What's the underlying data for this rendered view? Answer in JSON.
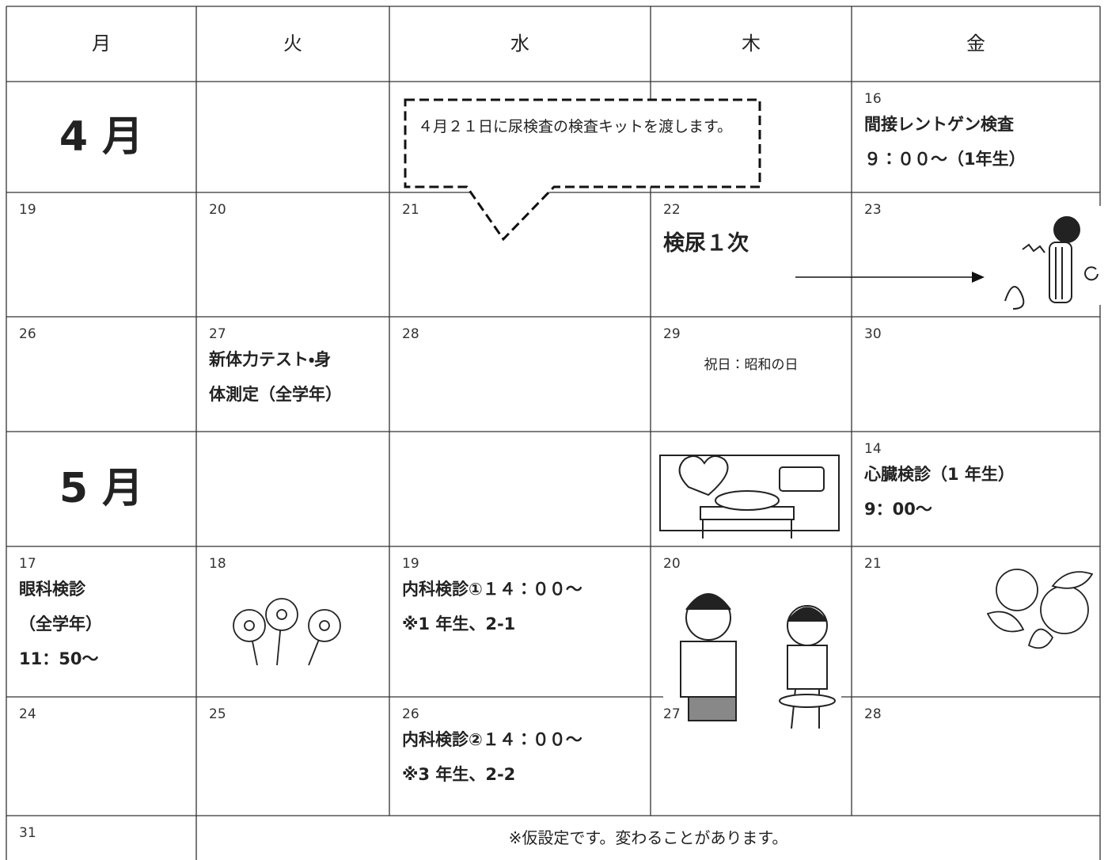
{
  "weekdays": [
    "月",
    "火",
    "水",
    "木",
    "金"
  ],
  "callout": "４月２１日に尿検査の検査キットを渡します。",
  "cells": [
    {
      "month": "4 月"
    },
    {
      "date": "16",
      "lines": [
        "間接レントゲン検査",
        "９：００～（1年生）"
      ]
    },
    {
      "date": "19"
    },
    {
      "date": "20"
    },
    {
      "date": "21"
    },
    {
      "date": "22",
      "lines": [
        "検尿１次"
      ]
    },
    {
      "date": "23"
    },
    {
      "date": "26"
    },
    {
      "date": "27",
      "lines": [
        "新体力テスト・身",
        "体測定（全学年）"
      ]
    },
    {
      "date": "28"
    },
    {
      "date": "29",
      "note": "祝日：昭和の日"
    },
    {
      "date": "30"
    },
    {
      "month": "5 月"
    },
    {
      "date": "14",
      "lines": [
        "心臓検診（1 年生）",
        "9：00～"
      ]
    },
    {
      "date": "17",
      "lines": [
        "眼科検診",
        "（全学年）",
        "11：50～"
      ]
    },
    {
      "date": "18"
    },
    {
      "date": "19",
      "lines": [
        "内科検診①１４：００～",
        "※1 年生、2-1"
      ]
    },
    {
      "date": "20"
    },
    {
      "date": "21"
    },
    {
      "date": "24"
    },
    {
      "date": "25"
    },
    {
      "date": "26",
      "lines": [
        "内科検診②１４：００～",
        "※3 年生、2-2"
      ]
    },
    {
      "date": "27"
    },
    {
      "date": "28"
    },
    {
      "date": "31"
    }
  ],
  "footnote": "※仮設定です。変わることがあります。"
}
